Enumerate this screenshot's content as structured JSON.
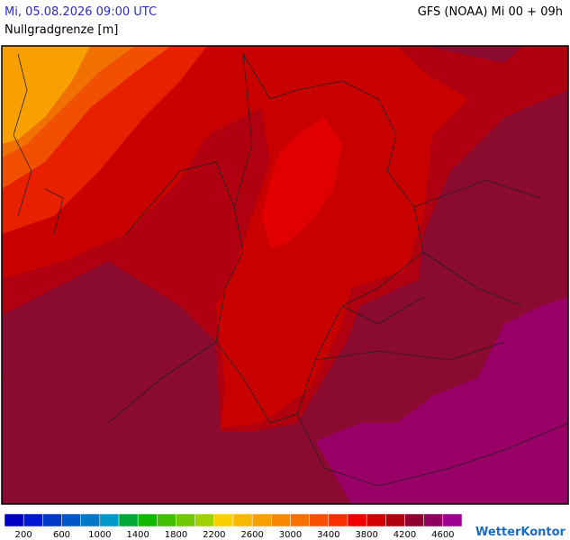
{
  "header": {
    "title": "Mi, 05.08.2026 09:00 UTC",
    "model": "GFS (NOAA) Mi 00 + 09h",
    "parameter": "Nullgradgrenze [m]"
  },
  "legend": {
    "colors": [
      "#0000c0",
      "#0018d0",
      "#0038c8",
      "#0058c8",
      "#0078c8",
      "#0098c8",
      "#00a838",
      "#10b800",
      "#40c000",
      "#70c800",
      "#a0d000",
      "#f8d000",
      "#f8b800",
      "#f8a000",
      "#f88800",
      "#f87000",
      "#f85000",
      "#f83000",
      "#f00000",
      "#d00000",
      "#b00010",
      "#900030",
      "#900060",
      "#a00090"
    ],
    "labels": [
      "200",
      "600",
      "1000",
      "1400",
      "1800",
      "2200",
      "2600",
      "3000",
      "3400",
      "3800",
      "4200",
      "4600"
    ]
  },
  "logo": "WetterKontor"
}
